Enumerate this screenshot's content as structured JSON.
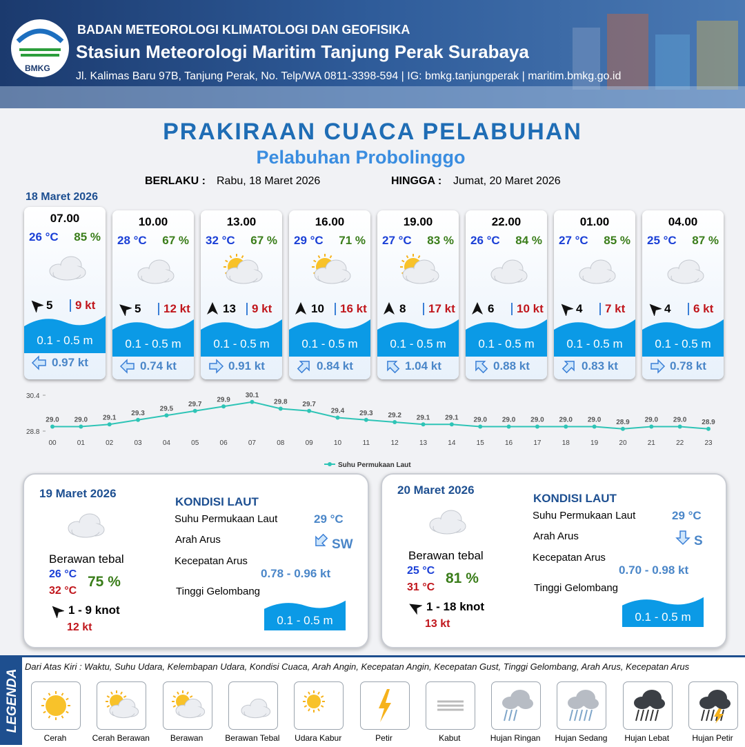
{
  "header": {
    "org": "BADAN METEOROLOGI KLIMATOLOGI DAN GEOFISIKA",
    "station": "Stasiun Meteorologi Maritim Tanjung Perak Surabaya",
    "address": "Jl. Kalimas Baru 97B, Tanjung Perak, No. Telp/WA 0811-3398-594 | IG: bmkg.tanjungperak | maritim.bmkg.go.id",
    "logo": "BMKG"
  },
  "title": "PRAKIRAAN CUACA PELABUHAN",
  "subtitle": "Pelabuhan Probolinggo",
  "validity": {
    "from_label": "BERLAKU :",
    "from": "Rabu, 18 Maret 2026",
    "to_label": "HINGGA :",
    "to": "Jumat, 20 Maret 2026"
  },
  "date": "18 Maret 2026",
  "forecasts": [
    {
      "time": "07.00",
      "temp": "26 °C",
      "humidity": "85 %",
      "sun": false,
      "wind_dir": -45,
      "wind": "5",
      "gust": "9 kt",
      "wave": "0.1 - 0.5 m",
      "current_dir": 270,
      "current": "0.97 kt"
    },
    {
      "time": "10.00",
      "temp": "28 °C",
      "humidity": "67 %",
      "sun": false,
      "wind_dir": -50,
      "wind": "5",
      "gust": "12 kt",
      "wave": "0.1 - 0.5 m",
      "current_dir": 270,
      "current": "0.74 kt"
    },
    {
      "time": "13.00",
      "temp": "32 °C",
      "humidity": "67 %",
      "sun": true,
      "wind_dir": 0,
      "wind": "13",
      "gust": "9 kt",
      "wave": "0.1 - 0.5 m",
      "current_dir": 90,
      "current": "0.91 kt"
    },
    {
      "time": "16.00",
      "temp": "29 °C",
      "humidity": "71 %",
      "sun": true,
      "wind_dir": 0,
      "wind": "10",
      "gust": "16 kt",
      "wave": "0.1 - 0.5 m",
      "current_dir": 45,
      "current": "0.84 kt"
    },
    {
      "time": "19.00",
      "temp": "27 °C",
      "humidity": "83 %",
      "sun": true,
      "wind_dir": 0,
      "wind": "8",
      "gust": "17 kt",
      "wave": "0.1 - 0.5 m",
      "current_dir": 315,
      "current": "1.04 kt"
    },
    {
      "time": "22.00",
      "temp": "26 °C",
      "humidity": "84 %",
      "sun": false,
      "wind_dir": 0,
      "wind": "6",
      "gust": "10 kt",
      "wave": "0.1 - 0.5 m",
      "current_dir": 315,
      "current": "0.88 kt"
    },
    {
      "time": "01.00",
      "temp": "27 °C",
      "humidity": "85 %",
      "sun": false,
      "wind_dir": -45,
      "wind": "4",
      "gust": "7 kt",
      "wave": "0.1 - 0.5 m",
      "current_dir": 45,
      "current": "0.83 kt"
    },
    {
      "time": "04.00",
      "temp": "25 °C",
      "humidity": "87 %",
      "sun": false,
      "wind_dir": -45,
      "wind": "4",
      "gust": "6 kt",
      "wave": "0.1 - 0.5 m",
      "current_dir": 90,
      "current": "0.78 kt"
    }
  ],
  "chart_data": {
    "type": "line",
    "categories": [
      "00",
      "01",
      "02",
      "03",
      "04",
      "05",
      "06",
      "07",
      "08",
      "09",
      "10",
      "11",
      "12",
      "13",
      "14",
      "15",
      "16",
      "17",
      "18",
      "19",
      "20",
      "21",
      "22",
      "23"
    ],
    "series": [
      {
        "name": "Suhu Permukaan Laut",
        "color": "#2ec4b6",
        "values": [
          29.0,
          29.0,
          29.1,
          29.3,
          29.5,
          29.7,
          29.9,
          30.1,
          29.8,
          29.7,
          29.4,
          29.3,
          29.2,
          29.1,
          29.1,
          29.0,
          29.0,
          29.0,
          29.0,
          29.0,
          28.9,
          29.0,
          29.0,
          28.9
        ],
        "value_labels": [
          "29.0",
          "29.0",
          "29.1",
          "29.3",
          "29.5",
          "29.7",
          "29.9",
          "30.1",
          "29.8",
          "29.7",
          "29.4",
          "29.3",
          "29.2",
          "29.1",
          "29.1",
          "29.0",
          "29.0",
          "29.0",
          "29.0",
          "29.0",
          "28.9",
          "29.0",
          "29.0",
          "28.9"
        ]
      }
    ],
    "ylim": [
      28.8,
      30.4
    ],
    "yticks": [
      28.8,
      30.4
    ],
    "legend": "bottom"
  },
  "days": [
    {
      "date": "19 Maret 2026",
      "condition": "Berawan tebal",
      "temp_min": "26 °C",
      "temp_max": "32 °C",
      "humidity": "75 %",
      "wind_dir": -45,
      "wind": "1 - 9 knot",
      "gust": "12 kt",
      "heading": "KONDISI LAUT",
      "sst_label": "Suhu Permukaan Laut",
      "sst": "29 °C",
      "current_dir_label": "Arah Arus",
      "current_dir_deg": 225,
      "current_dir": "SW",
      "speed_label": "Kecepatan Arus",
      "speed": "0.78  - 0.96 kt",
      "wave_label": "Tinggi Gelombang",
      "wave": "0.1 - 0.5 m"
    },
    {
      "date": "20 Maret 2026",
      "condition": "Berawan tebal",
      "temp_min": "25 °C",
      "temp_max": "31 °C",
      "humidity": "81 %",
      "wind_dir": -60,
      "wind": "1 - 18 knot",
      "gust": "13 kt",
      "heading": "KONDISI LAUT",
      "sst_label": "Suhu Permukaan Laut",
      "sst": "29 °C",
      "current_dir_label": "Arah Arus",
      "current_dir_deg": 180,
      "current_dir": "S",
      "speed_label": "Kecepatan Arus",
      "speed": "0.70 - 0.98 kt",
      "wave_label": "Tinggi Gelombang",
      "wave": "0.1 - 0.5 m"
    }
  ],
  "legend": {
    "title": "LEGENDA",
    "note": "Dari Atas Kiri : Waktu, Suhu Udara, Kelembapan Udara, Kondisi Cuaca, Arah Angin, Kecepatan Angin, Kecepatan Gust, Tinggi Gelombang, Arah Arus, Kecepatan Arus",
    "items": [
      "Cerah",
      "Cerah Berawan",
      "Berawan",
      "Berawan Tebal",
      "Udara Kabur",
      "Petir",
      "Kabut",
      "Hujan Ringan",
      "Hujan Sedang",
      "Hujan Lebat",
      "Hujan Petir"
    ]
  }
}
